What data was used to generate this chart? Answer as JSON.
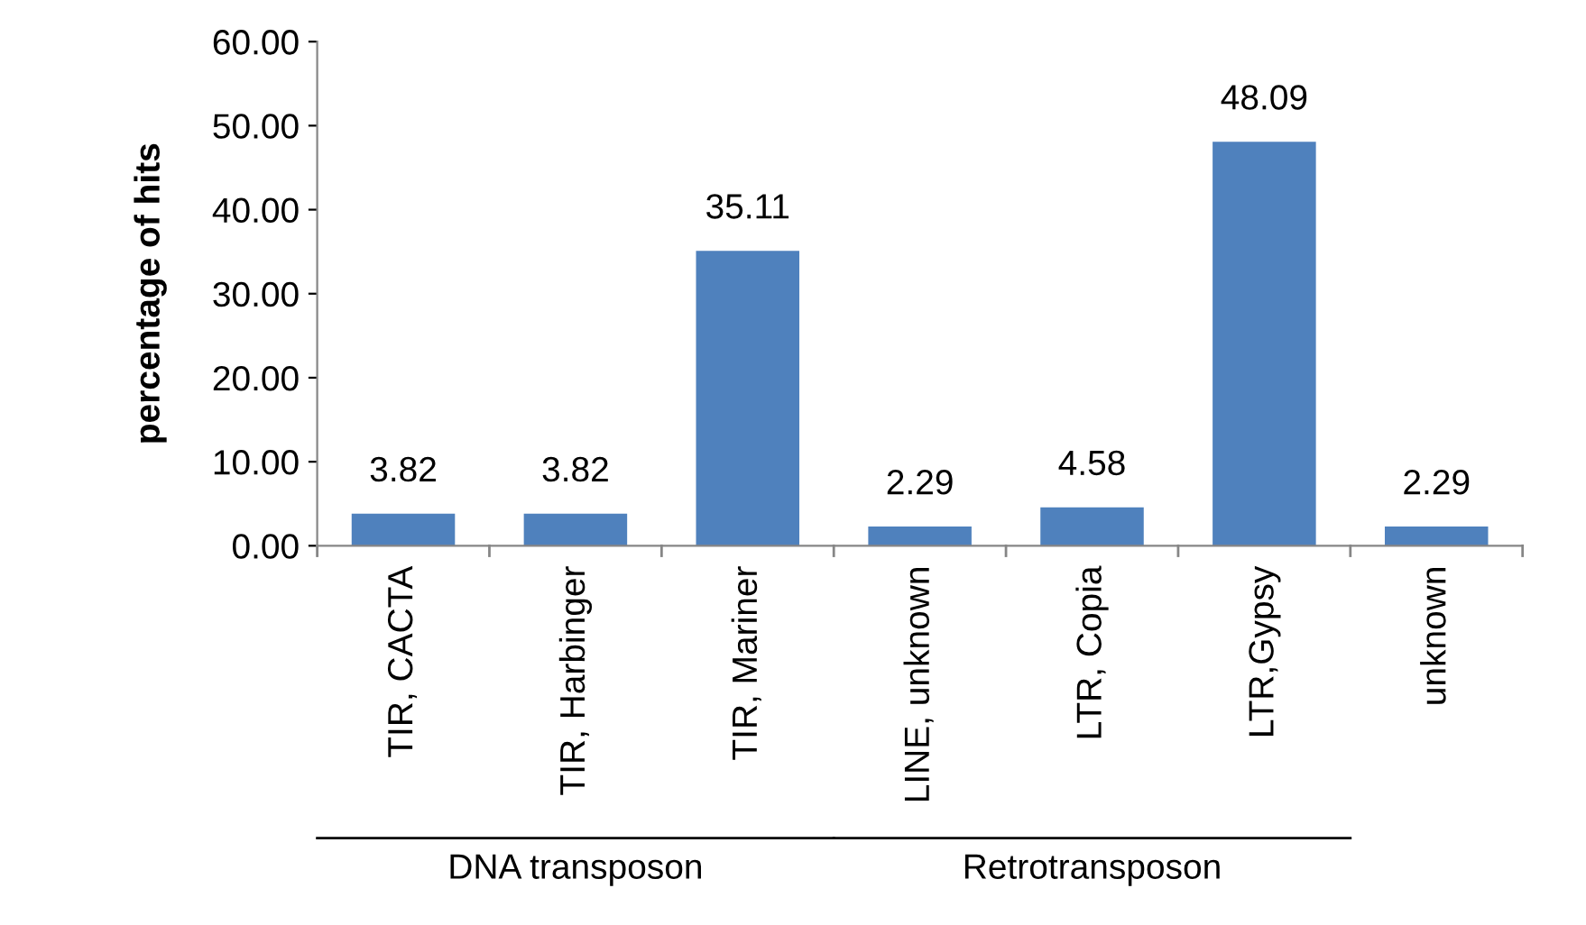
{
  "chart_data": {
    "type": "bar",
    "ylabel": "percentage of hits",
    "categories": [
      "TIR, CACTA",
      "TIR, Harbinger",
      "TIR, Mariner",
      "LINE, unknown",
      "LTR, Copia",
      "LTR,Gypsy",
      "unknown"
    ],
    "values": [
      3.82,
      3.82,
      35.11,
      2.29,
      4.58,
      48.09,
      2.29
    ],
    "color": "#4f81bd",
    "ylim": [
      0,
      60
    ],
    "yticks": [
      {
        "value": 0,
        "label": "0.00"
      },
      {
        "value": 10,
        "label": "10.00"
      },
      {
        "value": 20,
        "label": "20.00"
      },
      {
        "value": 30,
        "label": "30.00"
      },
      {
        "value": 40,
        "label": "40.00"
      },
      {
        "value": 50,
        "label": "50.00"
      },
      {
        "value": 60,
        "label": "60.00"
      }
    ],
    "data_labels": true,
    "grid": false,
    "legend": false,
    "annotations": [
      "DNA transposon",
      "Retrotransposon"
    ]
  }
}
